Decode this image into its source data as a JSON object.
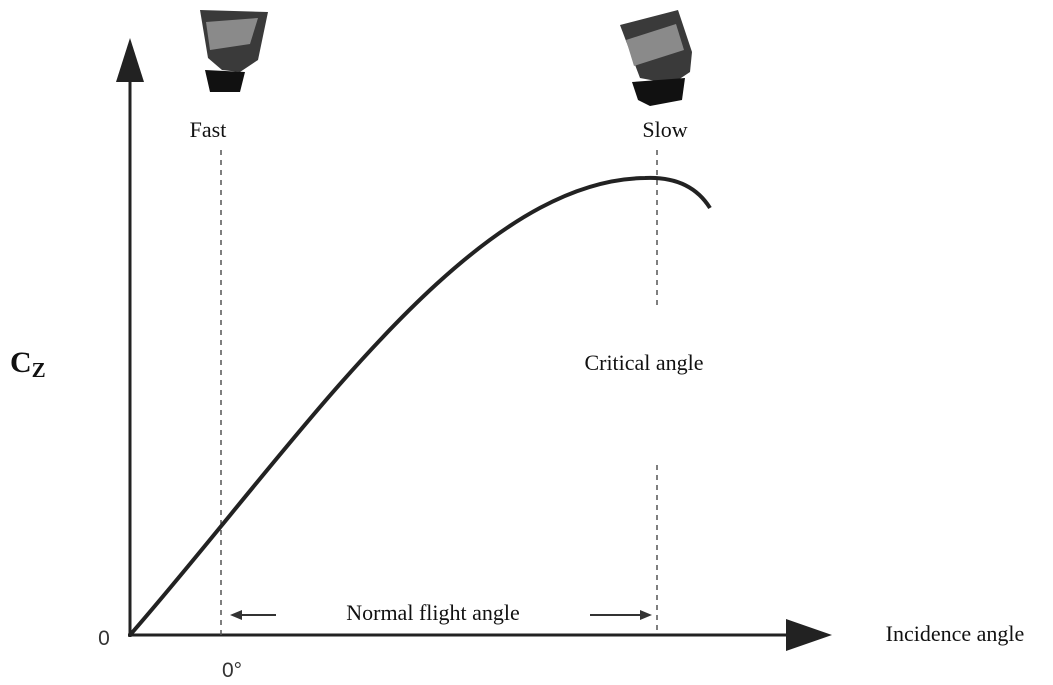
{
  "labels": {
    "fast": "Fast",
    "slow": "Slow",
    "critical": "Critical angle",
    "normal": "Normal flight angle"
  },
  "axes": {
    "y_label": {
      "main": "C",
      "sub": "Z"
    },
    "x_label": "Incidence angle",
    "origin": "0",
    "x_zero": "0°"
  }
}
